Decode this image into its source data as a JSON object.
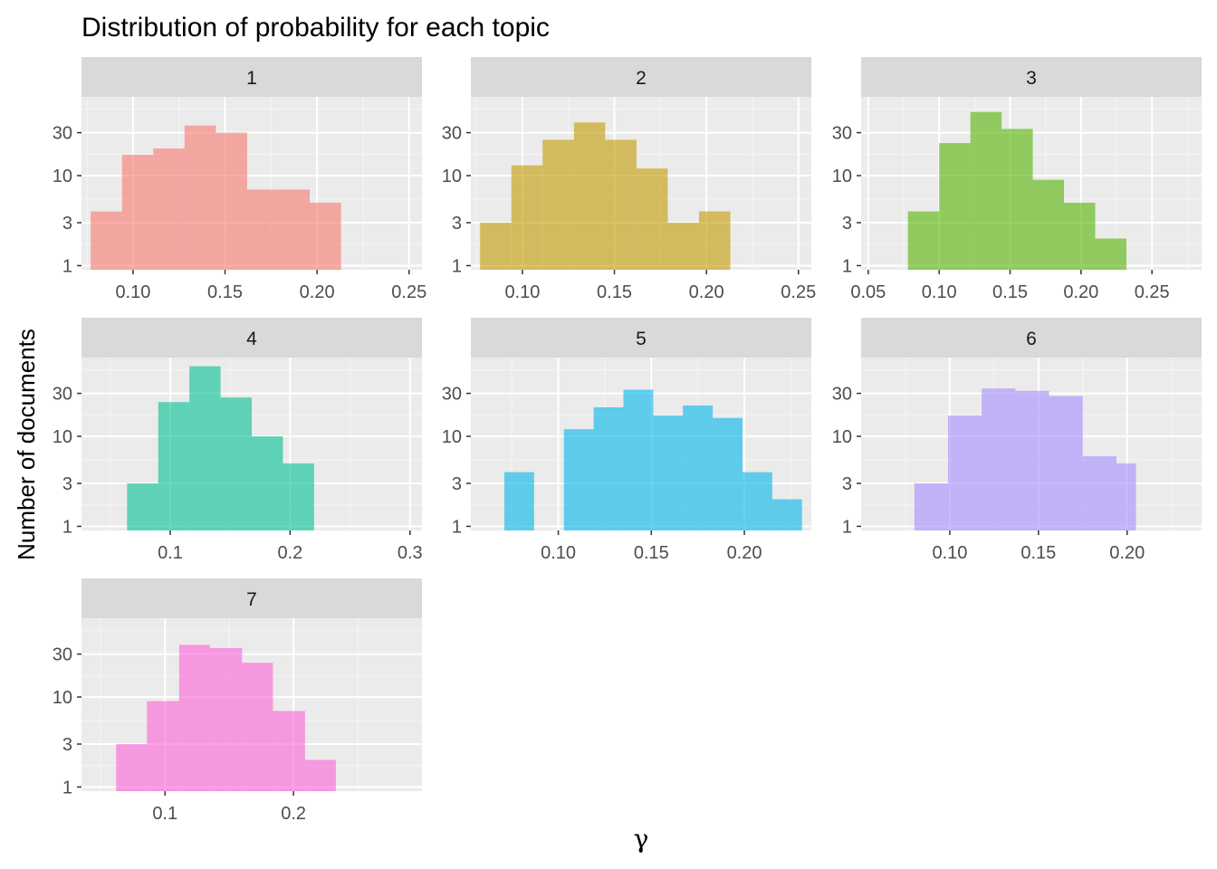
{
  "chart_data": {
    "type": "histogram",
    "title": "Distribution of probability for each topic",
    "xlabel": "γ",
    "ylabel": "Number of documents",
    "y_scale": "log10",
    "y_ticks": [
      1,
      3,
      10,
      30
    ],
    "grid": true,
    "panel_background": "#ebebeb",
    "strip_background": "#d9d9d9",
    "fill_opacity": 0.6,
    "panels": [
      {
        "label": "1",
        "color": "#F8766D",
        "xlim": [
          0.072,
          0.257
        ],
        "x_ticks": [
          0.1,
          0.15,
          0.2,
          0.25
        ],
        "x_tick_labels": [
          "0.10",
          "0.15",
          "0.20",
          "0.25"
        ],
        "ylim": [
          0.9,
          75
        ],
        "bins": [
          {
            "x0": 0.077,
            "x1": 0.094,
            "count": 4
          },
          {
            "x0": 0.094,
            "x1": 0.111,
            "count": 17
          },
          {
            "x0": 0.111,
            "x1": 0.128,
            "count": 20
          },
          {
            "x0": 0.128,
            "x1": 0.145,
            "count": 36
          },
          {
            "x0": 0.145,
            "x1": 0.162,
            "count": 30
          },
          {
            "x0": 0.162,
            "x1": 0.179,
            "count": 7
          },
          {
            "x0": 0.179,
            "x1": 0.196,
            "count": 7
          },
          {
            "x0": 0.196,
            "x1": 0.213,
            "count": 5
          }
        ]
      },
      {
        "label": "2",
        "color": "#C49A00",
        "xlim": [
          0.072,
          0.257
        ],
        "x_ticks": [
          0.1,
          0.15,
          0.2,
          0.25
        ],
        "x_tick_labels": [
          "0.10",
          "0.15",
          "0.20",
          "0.25"
        ],
        "ylim": [
          0.9,
          75
        ],
        "bins": [
          {
            "x0": 0.077,
            "x1": 0.094,
            "count": 3
          },
          {
            "x0": 0.094,
            "x1": 0.111,
            "count": 13
          },
          {
            "x0": 0.111,
            "x1": 0.128,
            "count": 25
          },
          {
            "x0": 0.128,
            "x1": 0.145,
            "count": 39
          },
          {
            "x0": 0.145,
            "x1": 0.162,
            "count": 25
          },
          {
            "x0": 0.162,
            "x1": 0.179,
            "count": 12
          },
          {
            "x0": 0.179,
            "x1": 0.196,
            "count": 3
          },
          {
            "x0": 0.196,
            "x1": 0.213,
            "count": 4
          }
        ]
      },
      {
        "label": "3",
        "color": "#53B400",
        "xlim": [
          0.045,
          0.285
        ],
        "x_ticks": [
          0.05,
          0.1,
          0.15,
          0.2,
          0.25
        ],
        "x_tick_labels": [
          "0.05",
          "0.10",
          "0.15",
          "0.20",
          "0.25"
        ],
        "ylim": [
          0.9,
          75
        ],
        "bins": [
          {
            "x0": 0.078,
            "x1": 0.1,
            "count": 4
          },
          {
            "x0": 0.1,
            "x1": 0.122,
            "count": 23
          },
          {
            "x0": 0.122,
            "x1": 0.144,
            "count": 51
          },
          {
            "x0": 0.144,
            "x1": 0.166,
            "count": 33
          },
          {
            "x0": 0.166,
            "x1": 0.188,
            "count": 9
          },
          {
            "x0": 0.188,
            "x1": 0.21,
            "count": 5
          },
          {
            "x0": 0.21,
            "x1": 0.232,
            "count": 2
          }
        ]
      },
      {
        "label": "4",
        "color": "#00C094",
        "xlim": [
          0.026,
          0.31
        ],
        "x_ticks": [
          0.1,
          0.2,
          0.3
        ],
        "x_tick_labels": [
          "0.1",
          "0.2",
          "0.3"
        ],
        "ylim": [
          0.9,
          75
        ],
        "bins": [
          {
            "x0": 0.064,
            "x1": 0.09,
            "count": 3
          },
          {
            "x0": 0.09,
            "x1": 0.116,
            "count": 24
          },
          {
            "x0": 0.116,
            "x1": 0.142,
            "count": 60
          },
          {
            "x0": 0.142,
            "x1": 0.168,
            "count": 27
          },
          {
            "x0": 0.168,
            "x1": 0.194,
            "count": 10
          },
          {
            "x0": 0.194,
            "x1": 0.22,
            "count": 5
          }
        ]
      },
      {
        "label": "5",
        "color": "#00B6EB",
        "xlim": [
          0.053,
          0.236
        ],
        "x_ticks": [
          0.1,
          0.15,
          0.2
        ],
        "x_tick_labels": [
          "0.10",
          "0.15",
          "0.20"
        ],
        "ylim": [
          0.9,
          75
        ],
        "bins": [
          {
            "x0": 0.071,
            "x1": 0.087,
            "count": 4
          },
          {
            "x0": 0.087,
            "x1": 0.103,
            "count": 0
          },
          {
            "x0": 0.103,
            "x1": 0.119,
            "count": 12
          },
          {
            "x0": 0.119,
            "x1": 0.135,
            "count": 21
          },
          {
            "x0": 0.135,
            "x1": 0.151,
            "count": 33
          },
          {
            "x0": 0.151,
            "x1": 0.167,
            "count": 17
          },
          {
            "x0": 0.167,
            "x1": 0.183,
            "count": 22
          },
          {
            "x0": 0.183,
            "x1": 0.199,
            "count": 16
          },
          {
            "x0": 0.199,
            "x1": 0.215,
            "count": 4
          },
          {
            "x0": 0.215,
            "x1": 0.231,
            "count": 2
          }
        ]
      },
      {
        "label": "6",
        "color": "#A58AFF",
        "xlim": [
          0.05,
          0.242
        ],
        "x_ticks": [
          0.1,
          0.15,
          0.2
        ],
        "x_tick_labels": [
          "0.10",
          "0.15",
          "0.20"
        ],
        "ylim": [
          0.9,
          75
        ],
        "bins": [
          {
            "x0": 0.08,
            "x1": 0.099,
            "count": 3
          },
          {
            "x0": 0.099,
            "x1": 0.118,
            "count": 17
          },
          {
            "x0": 0.118,
            "x1": 0.137,
            "count": 34
          },
          {
            "x0": 0.137,
            "x1": 0.156,
            "count": 32
          },
          {
            "x0": 0.156,
            "x1": 0.175,
            "count": 28
          },
          {
            "x0": 0.175,
            "x1": 0.194,
            "count": 6
          },
          {
            "x0": 0.194,
            "x1": 0.205,
            "count": 5
          }
        ]
      },
      {
        "label": "7",
        "color": "#FB61D7",
        "xlim": [
          0.035,
          0.3
        ],
        "x_ticks": [
          0.1,
          0.2
        ],
        "x_tick_labels": [
          "0.1",
          "0.2"
        ],
        "ylim": [
          0.9,
          75
        ],
        "bins": [
          {
            "x0": 0.062,
            "x1": 0.086,
            "count": 3
          },
          {
            "x0": 0.086,
            "x1": 0.111,
            "count": 9
          },
          {
            "x0": 0.111,
            "x1": 0.135,
            "count": 38
          },
          {
            "x0": 0.135,
            "x1": 0.16,
            "count": 35
          },
          {
            "x0": 0.16,
            "x1": 0.184,
            "count": 24
          },
          {
            "x0": 0.184,
            "x1": 0.209,
            "count": 7
          },
          {
            "x0": 0.209,
            "x1": 0.233,
            "count": 2
          }
        ]
      }
    ]
  }
}
